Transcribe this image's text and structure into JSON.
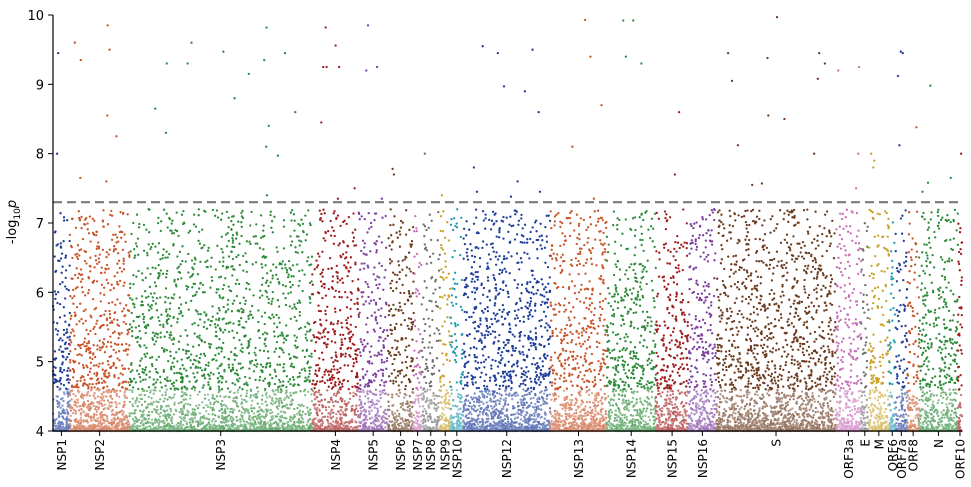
{
  "chart_data": {
    "type": "scatter",
    "title": "",
    "xlabel": "",
    "ylabel": "-log",
    "ylabel_sub": "10",
    "ylabel_tail": "p",
    "ylim": [
      4,
      10
    ],
    "yticks": [
      4,
      5,
      6,
      7,
      8,
      9,
      10
    ],
    "threshold": 7.3,
    "legend": "none",
    "grid": false,
    "genes": [
      {
        "name": "NSP1",
        "start": 0,
        "end": 540,
        "color": "#1f3d99",
        "n": 300
      },
      {
        "name": "NSP2",
        "start": 540,
        "end": 2450,
        "color": "#c8552a",
        "n": 1100
      },
      {
        "name": "NSP3",
        "start": 2450,
        "end": 8300,
        "color": "#2e8b3a",
        "n": 2600
      },
      {
        "name": "NSP4",
        "start": 8300,
        "end": 9800,
        "color": "#a01c1c",
        "n": 750
      },
      {
        "name": "NSP5",
        "start": 9800,
        "end": 10720,
        "color": "#7b3f9e",
        "n": 420
      },
      {
        "name": "NSP6",
        "start": 10720,
        "end": 11560,
        "color": "#6b3a1f",
        "n": 380
      },
      {
        "name": "NSP7",
        "start": 11560,
        "end": 11810,
        "color": "#c76fb8",
        "n": 110
      },
      {
        "name": "NSP8",
        "start": 11810,
        "end": 12400,
        "color": "#6e6e6e",
        "n": 250
      },
      {
        "name": "NSP9",
        "start": 12400,
        "end": 12740,
        "color": "#c9a227",
        "n": 150
      },
      {
        "name": "NSP10",
        "start": 12740,
        "end": 13140,
        "color": "#1f9ab0",
        "n": 170
      },
      {
        "name": "NSP12",
        "start": 13140,
        "end": 15940,
        "color": "#1f3d99",
        "n": 1600
      },
      {
        "name": "NSP13",
        "start": 15940,
        "end": 17740,
        "color": "#c8552a",
        "n": 950
      },
      {
        "name": "NSP14",
        "start": 17740,
        "end": 19320,
        "color": "#2e8b3a",
        "n": 800
      },
      {
        "name": "NSP15",
        "start": 19320,
        "end": 20360,
        "color": "#a01c1c",
        "n": 550
      },
      {
        "name": "NSP16",
        "start": 20360,
        "end": 21260,
        "color": "#7b3f9e",
        "n": 480
      },
      {
        "name": "S",
        "start": 21260,
        "end": 25080,
        "color": "#6b3a1f",
        "n": 2100
      },
      {
        "name": "ORF3a",
        "start": 25080,
        "end": 25900,
        "color": "#c76fb8",
        "n": 420
      },
      {
        "name": "E",
        "start": 25900,
        "end": 26130,
        "color": "#6e6e6e",
        "n": 100
      },
      {
        "name": "M",
        "start": 26130,
        "end": 26800,
        "color": "#c9a227",
        "n": 320
      },
      {
        "name": "ORF6",
        "start": 26800,
        "end": 26990,
        "color": "#1f9ab0",
        "n": 80
      },
      {
        "name": "ORF7a",
        "start": 26990,
        "end": 27380,
        "color": "#1f3d99",
        "n": 180
      },
      {
        "name": "ORF8",
        "start": 27380,
        "end": 27750,
        "color": "#c8552a",
        "n": 170
      },
      {
        "name": "N",
        "start": 27750,
        "end": 29000,
        "color": "#2e8b3a",
        "n": 650
      },
      {
        "name": "ORF10",
        "start": 29000,
        "end": 29130,
        "color": "#a01c1c",
        "n": 70
      }
    ],
    "points_above_threshold": [
      {
        "gene": "NSP1",
        "y": 8.0
      },
      {
        "gene": "NSP1",
        "y": 9.45
      },
      {
        "gene": "NSP2",
        "y": 8.25
      },
      {
        "gene": "NSP2",
        "y": 9.35
      },
      {
        "gene": "NSP2",
        "y": 8.55
      },
      {
        "gene": "NSP2",
        "y": 9.5
      },
      {
        "gene": "NSP2",
        "y": 9.6
      },
      {
        "gene": "NSP2",
        "y": 9.85
      },
      {
        "gene": "NSP2",
        "y": 7.65
      },
      {
        "gene": "NSP2",
        "y": 7.6
      },
      {
        "gene": "NSP3",
        "y": 9.6
      },
      {
        "gene": "NSP3",
        "y": 8.8
      },
      {
        "gene": "NSP3",
        "y": 9.3
      },
      {
        "gene": "NSP3",
        "y": 9.3
      },
      {
        "gene": "NSP3",
        "y": 8.65
      },
      {
        "gene": "NSP3",
        "y": 8.1
      },
      {
        "gene": "NSP3",
        "y": 9.82
      },
      {
        "gene": "NSP3",
        "y": 9.15
      },
      {
        "gene": "NSP3",
        "y": 8.4
      },
      {
        "gene": "NSP3",
        "y": 9.35
      },
      {
        "gene": "NSP3",
        "y": 9.45
      },
      {
        "gene": "NSP3",
        "y": 9.47
      },
      {
        "gene": "NSP3",
        "y": 8.6
      },
      {
        "gene": "NSP3",
        "y": 8.3
      },
      {
        "gene": "NSP3",
        "y": 7.97
      },
      {
        "gene": "NSP3",
        "y": 7.4
      },
      {
        "gene": "NSP4",
        "y": 7.5
      },
      {
        "gene": "NSP4",
        "y": 8.45
      },
      {
        "gene": "NSP4",
        "y": 9.82
      },
      {
        "gene": "NSP4",
        "y": 9.56
      },
      {
        "gene": "NSP4",
        "y": 9.25
      },
      {
        "gene": "NSP4",
        "y": 9.25
      },
      {
        "gene": "NSP4",
        "y": 9.25
      },
      {
        "gene": "NSP4",
        "y": 7.35
      },
      {
        "gene": "NSP5",
        "y": 9.25
      },
      {
        "gene": "NSP5",
        "y": 9.2
      },
      {
        "gene": "NSP5",
        "y": 9.85
      },
      {
        "gene": "NSP5",
        "y": 7.35
      },
      {
        "gene": "NSP6",
        "y": 7.78
      },
      {
        "gene": "NSP6",
        "y": 7.7
      },
      {
        "gene": "NSP8",
        "y": 8.0
      },
      {
        "gene": "NSP9",
        "y": 7.4
      },
      {
        "gene": "NSP12",
        "y": 8.9
      },
      {
        "gene": "NSP12",
        "y": 9.45
      },
      {
        "gene": "NSP12",
        "y": 9.55
      },
      {
        "gene": "NSP12",
        "y": 9.5
      },
      {
        "gene": "NSP12",
        "y": 8.97
      },
      {
        "gene": "NSP12",
        "y": 8.6
      },
      {
        "gene": "NSP12",
        "y": 7.8
      },
      {
        "gene": "NSP12",
        "y": 7.6
      },
      {
        "gene": "NSP12",
        "y": 7.45
      },
      {
        "gene": "NSP12",
        "y": 7.45
      },
      {
        "gene": "NSP12",
        "y": 7.38
      },
      {
        "gene": "NSP13",
        "y": 9.93
      },
      {
        "gene": "NSP13",
        "y": 9.4
      },
      {
        "gene": "NSP13",
        "y": 8.7
      },
      {
        "gene": "NSP13",
        "y": 8.1
      },
      {
        "gene": "NSP13",
        "y": 7.35
      },
      {
        "gene": "NSP14",
        "y": 9.92
      },
      {
        "gene": "NSP14",
        "y": 9.3
      },
      {
        "gene": "NSP14",
        "y": 9.4
      },
      {
        "gene": "NSP14",
        "y": 9.92
      },
      {
        "gene": "NSP15",
        "y": 8.6
      },
      {
        "gene": "NSP15",
        "y": 7.7
      },
      {
        "gene": "S",
        "y": 8.5
      },
      {
        "gene": "S",
        "y": 8.55
      },
      {
        "gene": "S",
        "y": 9.97
      },
      {
        "gene": "S",
        "y": 9.45
      },
      {
        "gene": "S",
        "y": 9.45
      },
      {
        "gene": "S",
        "y": 9.38
      },
      {
        "gene": "S",
        "y": 9.3
      },
      {
        "gene": "S",
        "y": 8.12
      },
      {
        "gene": "S",
        "y": 7.55
      },
      {
        "gene": "S",
        "y": 9.08
      },
      {
        "gene": "S",
        "y": 9.05
      },
      {
        "gene": "S",
        "y": 8.0
      },
      {
        "gene": "S",
        "y": 7.57
      },
      {
        "gene": "ORF3a",
        "y": 9.25
      },
      {
        "gene": "ORF3a",
        "y": 9.2
      },
      {
        "gene": "ORF3a",
        "y": 8.0
      },
      {
        "gene": "ORF3a",
        "y": 7.5
      },
      {
        "gene": "M",
        "y": 7.8
      },
      {
        "gene": "M",
        "y": 7.9
      },
      {
        "gene": "M",
        "y": 8.0
      },
      {
        "gene": "ORF7a",
        "y": 8.12
      },
      {
        "gene": "ORF7a",
        "y": 9.47
      },
      {
        "gene": "ORF7a",
        "y": 9.45
      },
      {
        "gene": "ORF7a",
        "y": 9.12
      },
      {
        "gene": "ORF8",
        "y": 8.38
      },
      {
        "gene": "N",
        "y": 8.98
      },
      {
        "gene": "N",
        "y": 7.65
      },
      {
        "gene": "N",
        "y": 7.58
      },
      {
        "gene": "N",
        "y": 7.45
      },
      {
        "gene": "ORF10",
        "y": 8.0
      }
    ]
  }
}
